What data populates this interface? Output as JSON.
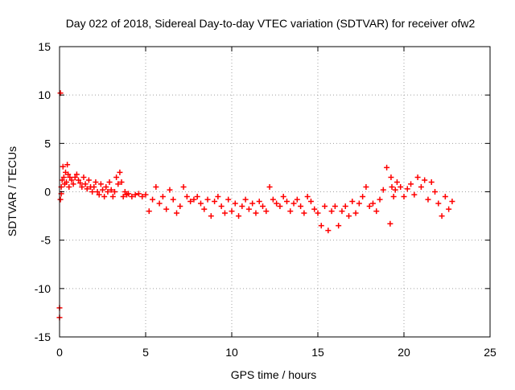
{
  "chart_data": {
    "type": "scatter",
    "title": "Day 022 of 2018, Sidereal Day-to-day VTEC variation (SDTVAR) for receiver ofw2",
    "xlabel": "GPS time / hours",
    "ylabel": "SDTVAR / TECUs",
    "xlim": [
      0,
      25
    ],
    "ylim": [
      -15,
      15
    ],
    "x_ticks": [
      0,
      5,
      10,
      15,
      20,
      25
    ],
    "y_ticks": [
      -15,
      -10,
      -5,
      0,
      5,
      10,
      15
    ],
    "grid": true,
    "legend": "none",
    "marker": "+",
    "series": [
      {
        "name": "SDTVAR",
        "color": "#ff0000",
        "x": [
          0.0,
          0.0,
          0.05,
          0.05,
          0.1,
          0.1,
          0.15,
          0.2,
          0.25,
          0.3,
          0.35,
          0.4,
          0.45,
          0.5,
          0.55,
          0.6,
          0.7,
          0.8,
          0.9,
          1.0,
          1.1,
          1.2,
          1.3,
          1.4,
          1.5,
          1.6,
          1.7,
          1.8,
          1.9,
          2.0,
          2.1,
          2.2,
          2.3,
          2.4,
          2.5,
          2.6,
          2.7,
          2.8,
          2.9,
          3.0,
          3.1,
          3.2,
          3.3,
          3.4,
          3.5,
          3.6,
          3.7,
          3.8,
          3.9,
          4.0,
          4.2,
          4.4,
          4.6,
          4.8,
          5.0,
          5.2,
          5.4,
          5.6,
          5.8,
          6.0,
          6.2,
          6.4,
          6.6,
          6.8,
          7.0,
          7.2,
          7.4,
          7.6,
          7.8,
          8.0,
          8.2,
          8.4,
          8.6,
          8.8,
          9.0,
          9.2,
          9.4,
          9.6,
          9.8,
          10.0,
          10.2,
          10.4,
          10.6,
          10.8,
          11.0,
          11.2,
          11.4,
          11.6,
          11.8,
          12.0,
          12.2,
          12.4,
          12.6,
          12.8,
          13.0,
          13.2,
          13.4,
          13.6,
          13.8,
          14.0,
          14.2,
          14.4,
          14.6,
          14.8,
          15.0,
          15.2,
          15.4,
          15.6,
          15.8,
          16.0,
          16.2,
          16.4,
          16.6,
          16.8,
          17.0,
          17.2,
          17.4,
          17.6,
          17.8,
          18.0,
          18.2,
          18.4,
          18.6,
          18.8,
          19.0,
          19.2,
          19.25,
          19.3,
          19.4,
          19.5,
          19.6,
          19.8,
          20.0,
          20.2,
          20.4,
          20.6,
          20.8,
          21.0,
          21.2,
          21.4,
          21.6,
          21.8,
          22.0,
          22.2,
          22.4,
          22.6,
          22.8
        ],
        "y": [
          -12.0,
          -13.0,
          10.2,
          -0.8,
          -0.2,
          0.5,
          1.2,
          2.6,
          1.5,
          0.8,
          2.0,
          1.0,
          2.8,
          1.8,
          0.5,
          1.5,
          1.2,
          0.8,
          1.5,
          1.8,
          1.2,
          0.9,
          0.5,
          1.5,
          0.8,
          0.3,
          1.2,
          0.5,
          0.0,
          0.5,
          1.0,
          0.0,
          -0.3,
          0.8,
          0.2,
          -0.5,
          0.5,
          0.0,
          1.0,
          0.2,
          -0.5,
          0.0,
          1.5,
          0.8,
          2.0,
          1.0,
          -0.5,
          0.0,
          -0.3,
          -0.2,
          -0.5,
          -0.3,
          -0.2,
          -0.5,
          -0.3,
          -2.0,
          -0.8,
          0.5,
          -1.2,
          -0.5,
          -1.8,
          0.2,
          -0.8,
          -2.2,
          -1.5,
          0.5,
          -0.5,
          -1.0,
          -0.8,
          -0.5,
          -1.2,
          -1.8,
          -0.8,
          -2.5,
          -1.0,
          -0.5,
          -1.5,
          -2.2,
          -0.8,
          -2.0,
          -1.2,
          -2.5,
          -1.5,
          -0.8,
          -1.8,
          -1.2,
          -2.2,
          -1.0,
          -1.5,
          -2.0,
          0.5,
          -0.8,
          -1.2,
          -1.5,
          -0.5,
          -1.0,
          -2.0,
          -1.2,
          -0.8,
          -1.5,
          -2.2,
          -0.5,
          -1.0,
          -1.8,
          -2.2,
          -3.5,
          -1.5,
          -4.0,
          -2.0,
          -1.5,
          -3.5,
          -2.0,
          -1.5,
          -2.5,
          -1.0,
          -2.2,
          -1.2,
          -0.5,
          0.5,
          -1.5,
          -1.2,
          -2.0,
          -0.8,
          0.2,
          2.5,
          -3.3,
          1.5,
          0.5,
          -0.5,
          0.2,
          1.0,
          0.5,
          -0.5,
          0.3,
          0.8,
          -0.3,
          1.5,
          0.5,
          1.2,
          -0.8,
          1.0,
          0.0,
          -1.2,
          -2.5,
          -0.5,
          -1.8,
          -1.0
        ]
      }
    ]
  }
}
